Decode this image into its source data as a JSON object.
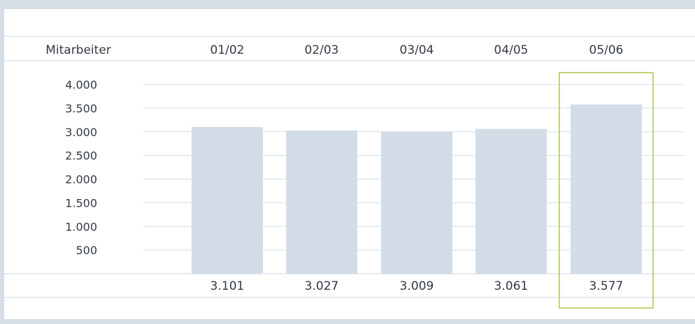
{
  "chart_data": {
    "type": "bar",
    "header_label": "Mitarbeiter",
    "categories": [
      "01/02",
      "02/03",
      "03/04",
      "04/05",
      "05/06"
    ],
    "values": [
      3101,
      3027,
      3009,
      3061,
      3577
    ],
    "value_labels": [
      "3.101",
      "3.027",
      "3.009",
      "3.061",
      "3.577"
    ],
    "yticks": [
      500,
      1000,
      1500,
      2000,
      2500,
      3000,
      3500,
      4000
    ],
    "ytick_labels": [
      "500",
      "1.000",
      "1.500",
      "2.000",
      "2.500",
      "3.000",
      "3.500",
      "4.000"
    ],
    "ylim": [
      0,
      4000
    ],
    "grid": true,
    "highlight_index": 4,
    "colors": {
      "bar": "#d3dde7",
      "grid": "#d6dee7",
      "highlight_border": "#a9c64a",
      "frame": "#d7dde5",
      "text": "#333a44"
    }
  }
}
